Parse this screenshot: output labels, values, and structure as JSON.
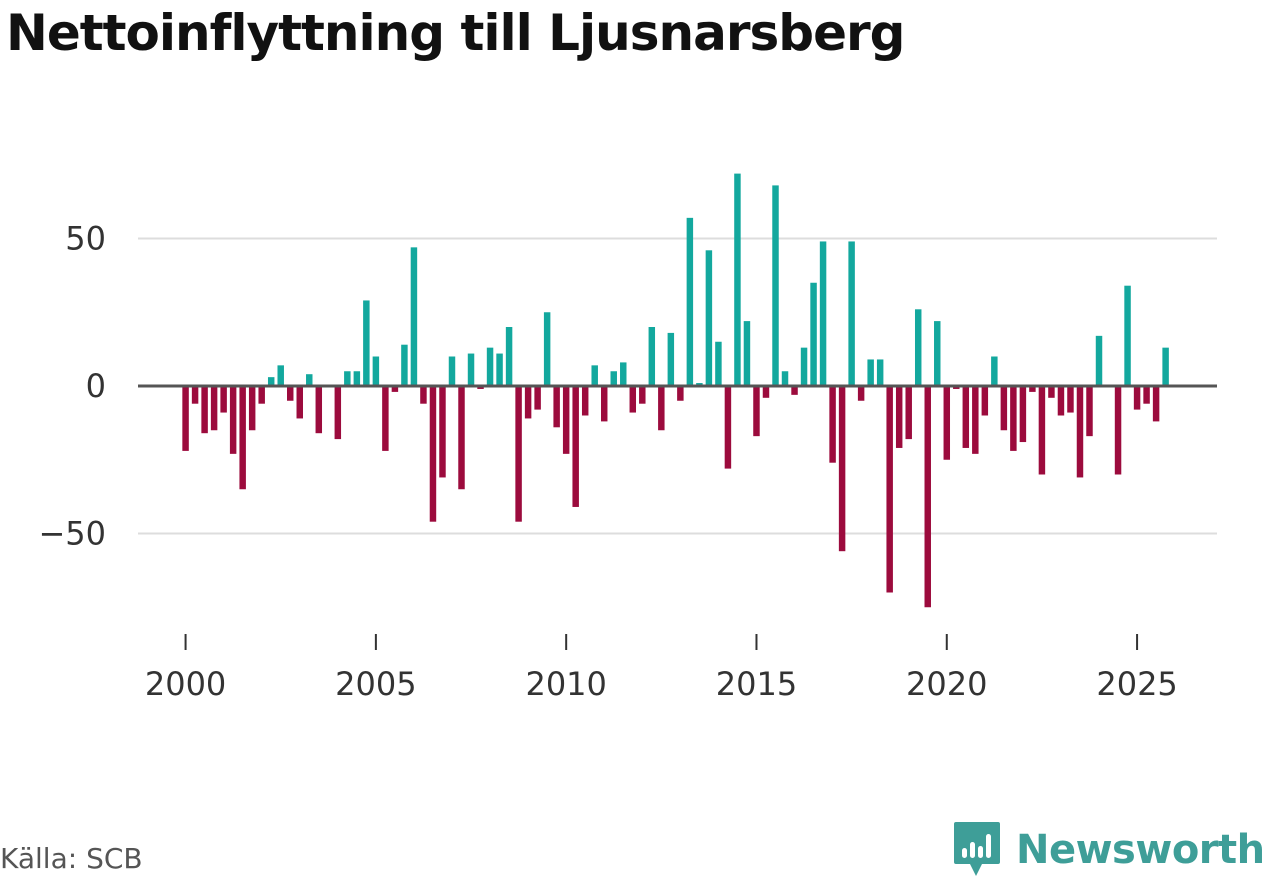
{
  "chart_data": {
    "type": "bar",
    "title": "Nettoinflyttning till Ljusnarsberg",
    "source": "Källa: SCB",
    "xlabel": "",
    "ylabel": "",
    "x_start": 2000,
    "x_step": 0.25,
    "xlim": [
      1998.75,
      2027.1
    ],
    "ylim": [
      -80,
      80
    ],
    "y_ticks": [
      50,
      0,
      -50
    ],
    "y_tick_labels": [
      "50",
      "0",
      "−50"
    ],
    "x_ticks": [
      2000,
      2005,
      2010,
      2015,
      2020,
      2025
    ],
    "x_tick_labels": [
      "2000",
      "2005",
      "2010",
      "2015",
      "2020",
      "2025"
    ],
    "grid": true,
    "positive_color": "#13a89e",
    "negative_color": "#9c0b3d",
    "values": [
      -22,
      -6,
      -16,
      -15,
      -9,
      -23,
      -35,
      -15,
      -6,
      3,
      7,
      -5,
      -11,
      4,
      -16,
      0,
      -18,
      5,
      5,
      29,
      10,
      -22,
      -2,
      14,
      47,
      -6,
      -46,
      -31,
      10,
      -35,
      11,
      -1,
      13,
      11,
      20,
      -46,
      -11,
      -8,
      25,
      -14,
      -23,
      -41,
      -10,
      7,
      -12,
      5,
      8,
      -9,
      -6,
      20,
      -15,
      18,
      -5,
      57,
      1,
      46,
      15,
      -28,
      72,
      22,
      -17,
      -4,
      68,
      5,
      -3,
      13,
      35,
      49,
      -26,
      -56,
      49,
      -5,
      9,
      9,
      -70,
      -21,
      -18,
      26,
      -75,
      22,
      -25,
      -1,
      -21,
      -23,
      -10,
      10,
      -15,
      -22,
      -19,
      -2,
      -30,
      -4,
      -10,
      -9,
      -31,
      -17,
      17,
      0,
      -30,
      34,
      -8,
      -6,
      -12,
      13
    ]
  },
  "branding": {
    "name": "Newsworthy",
    "color": "#3e9e98"
  },
  "colors": {
    "baseline": "#555555",
    "grid": "#dddddd"
  }
}
